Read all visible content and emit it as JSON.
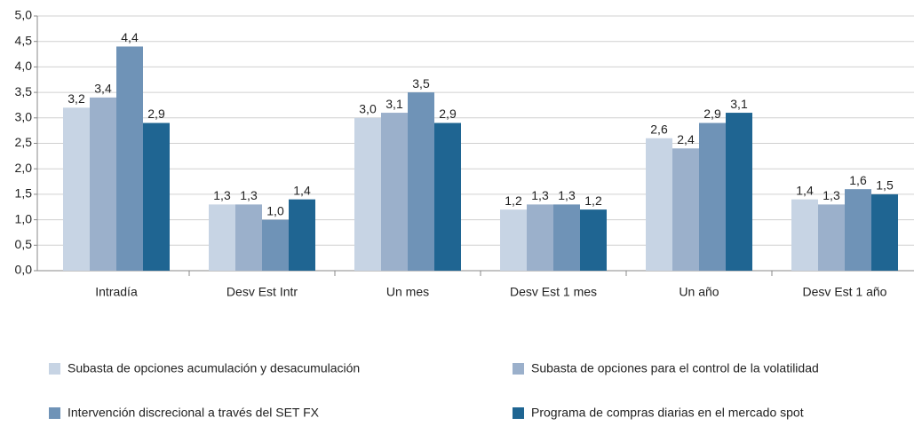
{
  "chart_data": {
    "type": "bar",
    "categories": [
      "Intradía",
      "Desv Est Intr",
      "Un mes",
      "Desv Est 1 mes",
      "Un año",
      "Desv Est 1 año"
    ],
    "series": [
      {
        "name": "Subasta de opciones acumulación y desacumulación",
        "color": "#c7d4e4",
        "values": [
          3.2,
          1.3,
          3.0,
          1.2,
          2.6,
          1.4
        ],
        "value_labels": [
          "3,2",
          "1,3",
          "3,0",
          "1,2",
          "2,6",
          "1,4"
        ]
      },
      {
        "name": "Subasta de opciones para el control de la volatilidad",
        "color": "#9bb0cb",
        "values": [
          3.4,
          1.3,
          3.1,
          1.3,
          2.4,
          1.3
        ],
        "value_labels": [
          "3,4",
          "1,3",
          "3,1",
          "1,3",
          "2,4",
          "1,3"
        ]
      },
      {
        "name": "Intervención discrecional a través del SET FX",
        "color": "#6f93b7",
        "values": [
          4.4,
          1.0,
          3.5,
          1.3,
          2.9,
          1.6
        ],
        "value_labels": [
          "4,4",
          "1,0",
          "3,5",
          "1,3",
          "2,9",
          "1,6"
        ]
      },
      {
        "name": "Programa de compras diarias en el mercado spot",
        "color": "#1f6592",
        "values": [
          2.9,
          1.4,
          2.9,
          1.2,
          3.1,
          1.5
        ],
        "value_labels": [
          "2,9",
          "1,4",
          "2,9",
          "1,2",
          "3,1",
          "1,5"
        ]
      }
    ],
    "ylim": [
      0,
      5
    ],
    "yticks": [
      {
        "value": 0,
        "label": "0,0"
      },
      {
        "value": 0.5,
        "label": "0,5"
      },
      {
        "value": 1,
        "label": "1,0"
      },
      {
        "value": 1.5,
        "label": "1,5"
      },
      {
        "value": 2,
        "label": "2,0"
      },
      {
        "value": 2.5,
        "label": "2,5"
      },
      {
        "value": 3,
        "label": "3,0"
      },
      {
        "value": 3.5,
        "label": "3,5"
      },
      {
        "value": 4,
        "label": "4,0"
      },
      {
        "value": 4.5,
        "label": "4,5"
      },
      {
        "value": 5,
        "label": "5,0"
      }
    ],
    "grid": true,
    "legend": "bottom"
  }
}
